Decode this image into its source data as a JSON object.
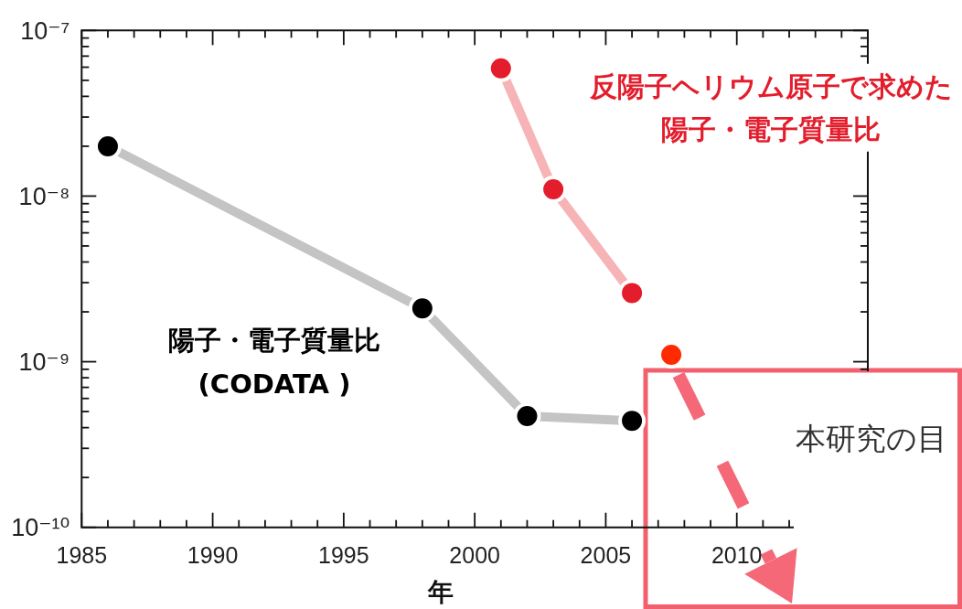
{
  "chart_data": {
    "type": "line",
    "xlabel": "年",
    "log": "y",
    "xlim": [
      1985,
      2015
    ],
    "ylim": [
      1e-10,
      1e-07
    ],
    "xticks": [
      1985,
      {
        "value": 1986,
        "label": null
      },
      {
        "value": 1987,
        "label": null
      },
      {
        "value": 1988,
        "label": null
      },
      {
        "value": 1989,
        "label": null
      },
      1990,
      {
        "value": 1991,
        "label": null
      },
      {
        "value": 1992,
        "label": null
      },
      {
        "value": 1993,
        "label": null
      },
      {
        "value": 1994,
        "label": null
      },
      1995,
      {
        "value": 1996,
        "label": null
      },
      {
        "value": 1997,
        "label": null
      },
      {
        "value": 1998,
        "label": null
      },
      {
        "value": 1999,
        "label": null
      },
      2000,
      {
        "value": 2001,
        "label": null
      },
      {
        "value": 2002,
        "label": null
      },
      {
        "value": 2003,
        "label": null
      },
      {
        "value": 2004,
        "label": null
      },
      2005,
      {
        "value": 2006,
        "label": null
      },
      {
        "value": 2007,
        "label": null
      },
      {
        "value": 2008,
        "label": null
      },
      {
        "value": 2009,
        "label": null
      },
      2010,
      {
        "value": 2011,
        "label": null
      },
      {
        "value": 2012,
        "label": null
      },
      {
        "value": 2013,
        "label": null
      },
      {
        "value": 2014,
        "label": null
      }
    ],
    "yticks": [
      {
        "value": 1e-10,
        "label": "10⁻¹⁰"
      },
      {
        "value": 2e-10,
        "label": null
      },
      {
        "value": 3e-10,
        "label": null
      },
      {
        "value": 4e-10,
        "label": null
      },
      {
        "value": 5e-10,
        "label": null
      },
      {
        "value": 6e-10,
        "label": null
      },
      {
        "value": 7e-10,
        "label": null
      },
      {
        "value": 8e-10,
        "label": null
      },
      {
        "value": 9e-10,
        "label": null
      },
      {
        "value": 1e-09,
        "label": "10⁻⁹"
      },
      {
        "value": 2e-09,
        "label": null
      },
      {
        "value": 3e-09,
        "label": null
      },
      {
        "value": 4e-09,
        "label": null
      },
      {
        "value": 5e-09,
        "label": null
      },
      {
        "value": 6e-09,
        "label": null
      },
      {
        "value": 7e-09,
        "label": null
      },
      {
        "value": 8e-09,
        "label": null
      },
      {
        "value": 9e-09,
        "label": null
      },
      {
        "value": 1e-08,
        "label": "10⁻⁸"
      },
      {
        "value": 2e-08,
        "label": null
      },
      {
        "value": 3e-08,
        "label": null
      },
      {
        "value": 4e-08,
        "label": null
      },
      {
        "value": 5e-08,
        "label": null
      },
      {
        "value": 6e-08,
        "label": null
      },
      {
        "value": 7e-08,
        "label": null
      },
      {
        "value": 8e-08,
        "label": null
      },
      {
        "value": 9e-08,
        "label": null
      },
      {
        "value": 1e-07,
        "label": "10⁻⁷"
      }
    ],
    "marker": "circle",
    "line_style": "solid",
    "series": [
      {
        "type": "line",
        "marker": "none",
        "x": [
          1986,
          1998,
          2002,
          2006
        ],
        "values": [
          2e-08,
          2.1e-09,
          4.7e-10,
          4.4e-10
        ],
        "color": "#c4c4c4"
      },
      {
        "name": "陽子・電子質量比\n(CODATA )",
        "type": "scatter",
        "x": [
          1986,
          1998,
          2002,
          2006
        ],
        "values": [
          2e-08,
          2.1e-09,
          4.7e-10,
          4.4e-10
        ],
        "color": "#000000"
      },
      {
        "type": "line",
        "marker": "none",
        "x": [
          2001,
          2003,
          2006
        ],
        "values": [
          5.9e-08,
          1.1e-08,
          2.6e-09
        ],
        "color": "#f6b4b6"
      },
      {
        "name": "反陽子ヘリウム原子で求めた陽子・電子質量比",
        "type": "scatter",
        "x": [
          2001,
          2003,
          2006
        ],
        "values": [
          5.9e-08,
          1.1e-08,
          2.6e-09
        ],
        "color": "#e41d2c"
      },
      {
        "type": "scatter",
        "x": [
          2007.5
        ],
        "values": [
          1.1e-09
        ],
        "color": "#ff2a00"
      }
    ],
    "annotations": [
      "本研究の目"
    ]
  }
}
